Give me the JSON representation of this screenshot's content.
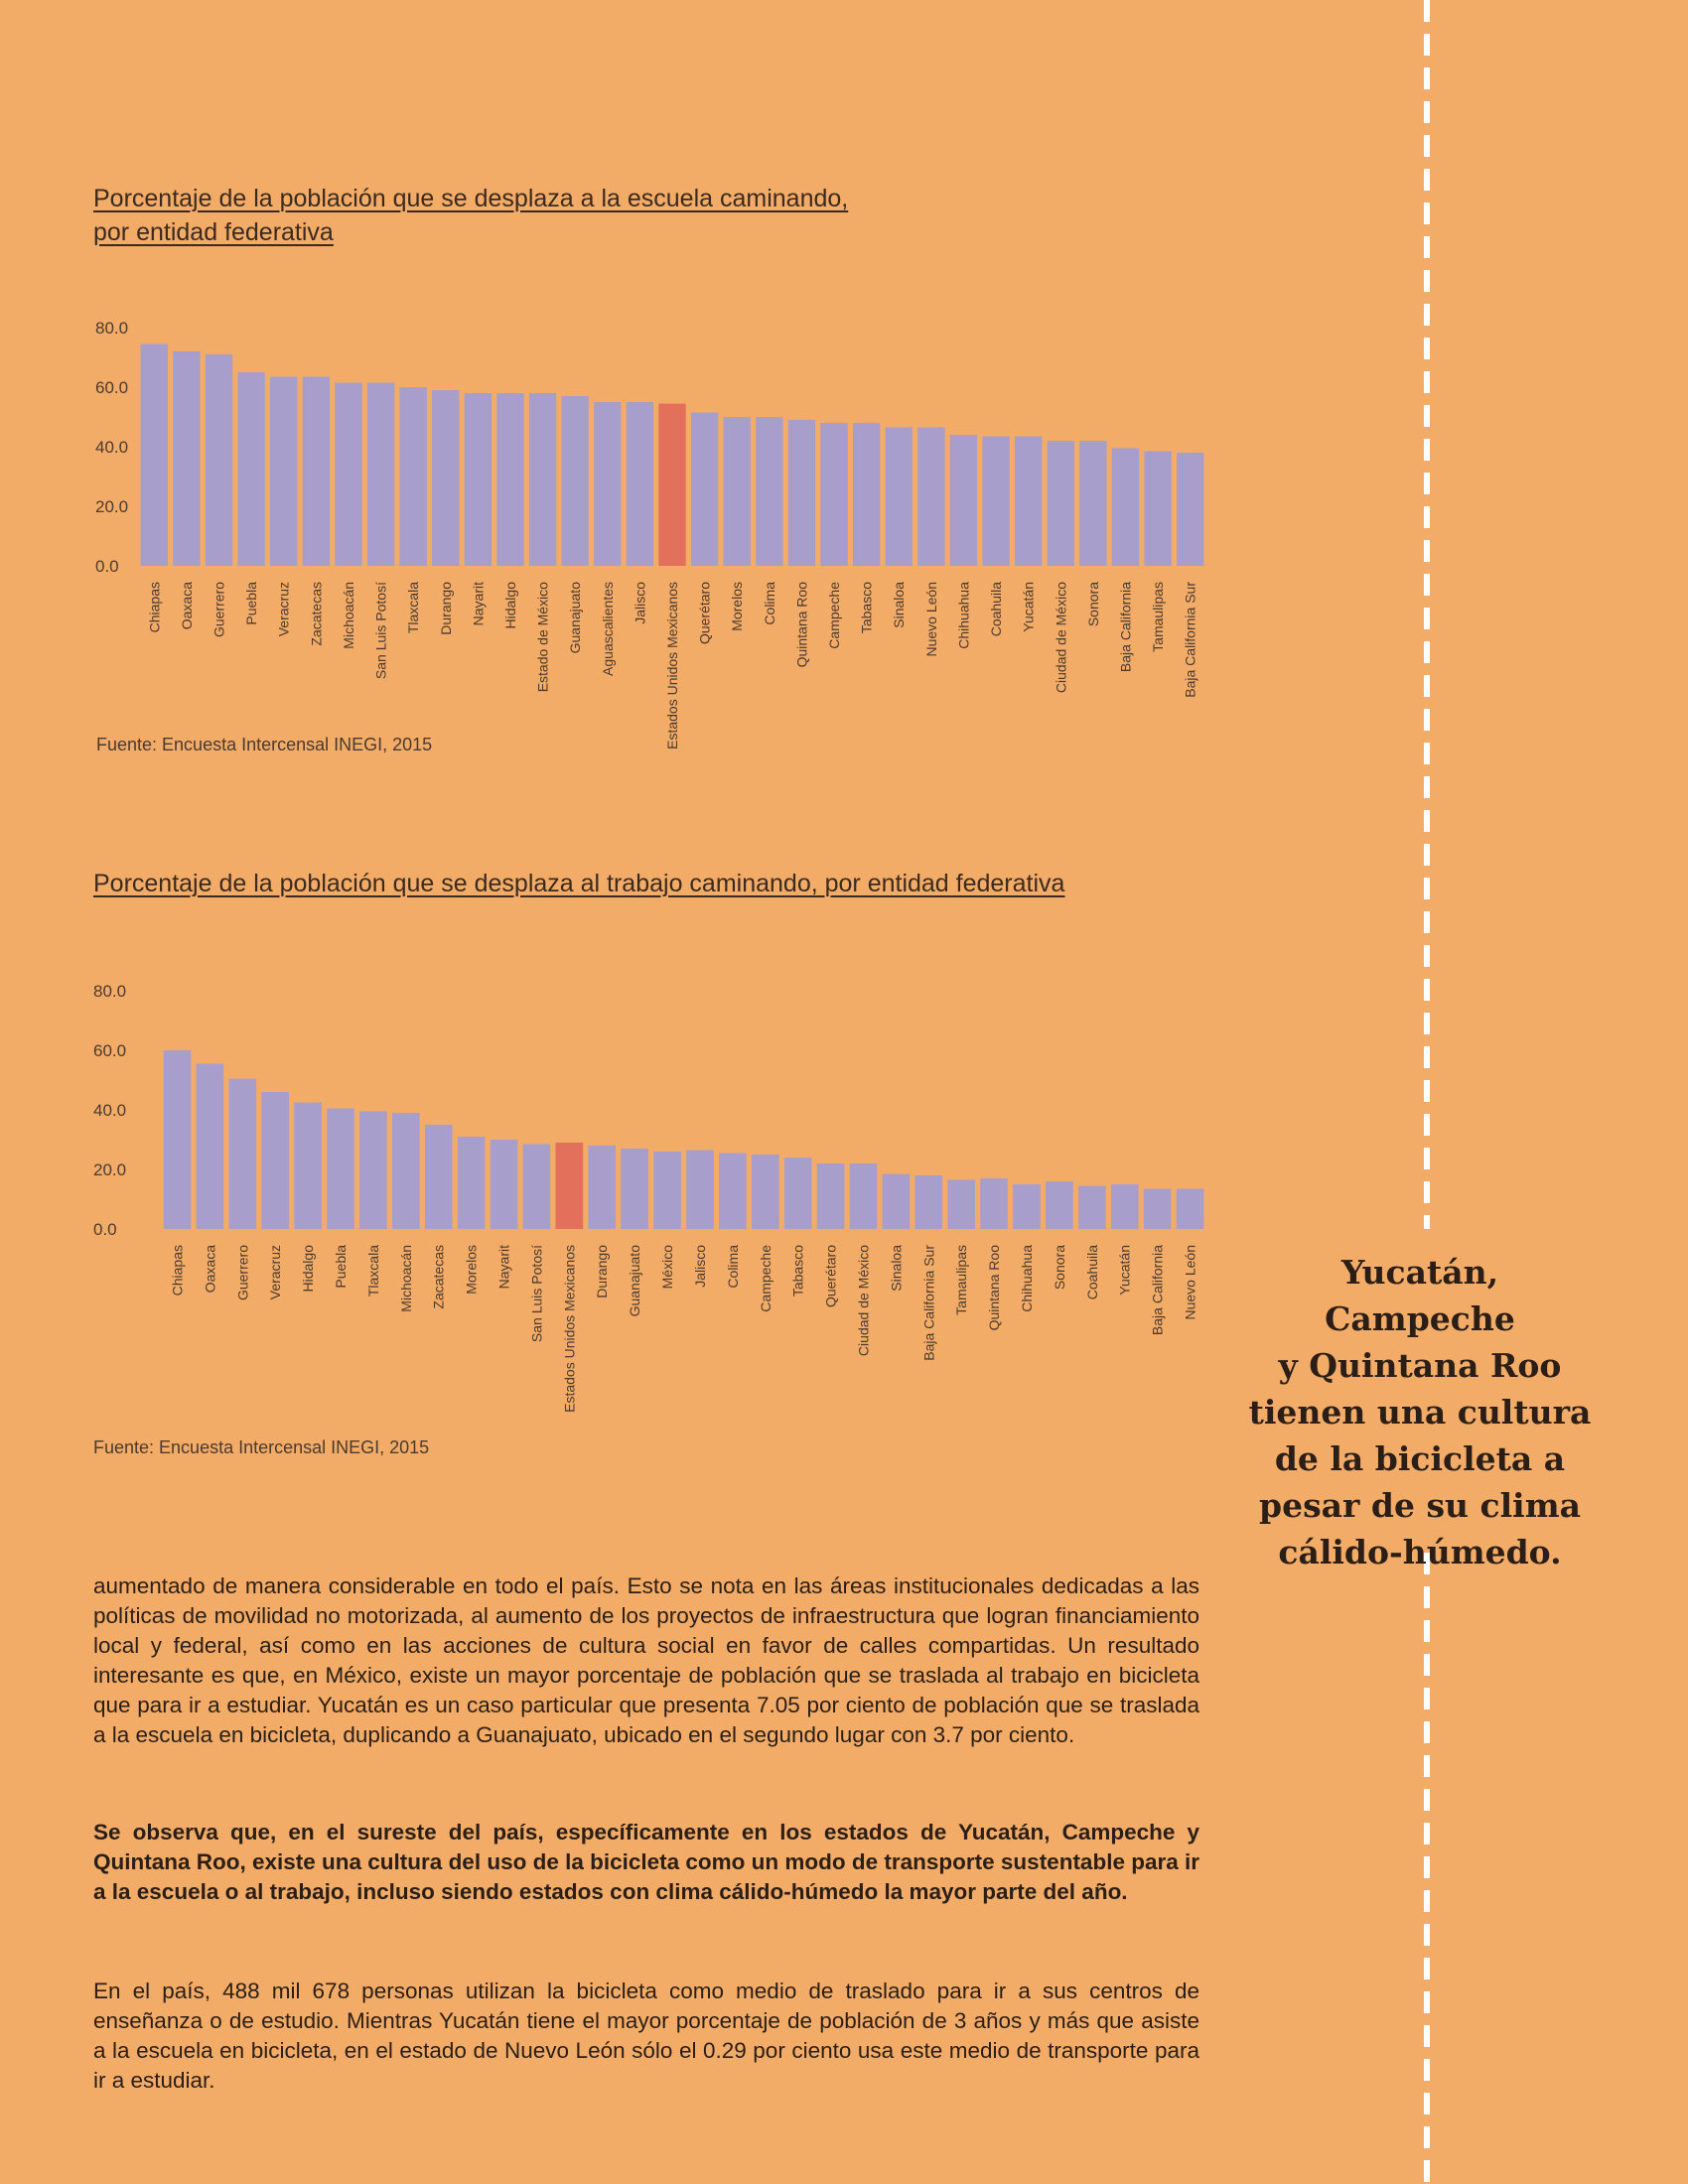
{
  "charts": [
    {
      "title_line1": "Porcentaje de la población que se desplaza a la escuela caminando,",
      "title_line2": "por entidad federativa",
      "source": "Fuente: Encuesta Intercensal INEGI, 2015"
    },
    {
      "title_line1": "Porcentaje de la población que se desplaza al trabajo caminando, por entidad federativa",
      "source": "Fuente: Encuesta Intercensal INEGI, 2015"
    }
  ],
  "colors": {
    "background": "#F3AC67",
    "bar": "#A89ECB",
    "highlight": "#E3705A",
    "axis_text": "#4a3a30"
  },
  "chart_data": [
    {
      "type": "bar",
      "title": "Porcentaje de la población que se desplaza a la escuela caminando, por entidad federativa",
      "ylim": [
        0,
        80
      ],
      "y_ticks": [
        "0.0",
        "20.0",
        "40.0",
        "60.0",
        "80.0"
      ],
      "grid": false,
      "highlight": "Estados Unidos Mexicanos",
      "categories": [
        "Chiapas",
        "Oaxaca",
        "Guerrero",
        "Puebla",
        "Veracruz",
        "Zacatecas",
        "Michoacán",
        "San Luis Potosí",
        "Tlaxcala",
        "Durango",
        "Nayarit",
        "Hidalgo",
        "Estado de México",
        "Guanajuato",
        "Aguascalientes",
        "Jalisco",
        "Estados Unidos Mexicanos",
        "Querétaro",
        "Morelos",
        "Colima",
        "Quintana Roo",
        "Campeche",
        "Tabasco",
        "Sinaloa",
        "Nuevo León",
        "Chihuahua",
        "Coahuila",
        "Yucatán",
        "Ciudad de México",
        "Sonora",
        "Baja California",
        "Tamaulipas",
        "Baja California Sur"
      ],
      "values": [
        74.5,
        72.0,
        71.0,
        65.0,
        63.5,
        63.5,
        61.5,
        61.5,
        60.0,
        59.0,
        58.0,
        58.0,
        58.0,
        57.0,
        55.0,
        55.0,
        54.5,
        51.5,
        50.0,
        50.0,
        49.0,
        48.0,
        48.0,
        46.5,
        46.5,
        44.0,
        43.5,
        43.5,
        42.0,
        42.0,
        39.5,
        38.5,
        38.0
      ]
    },
    {
      "type": "bar",
      "title": "Porcentaje de la población que se desplaza al trabajo caminando, por entidad federativa",
      "ylim": [
        0,
        80
      ],
      "y_ticks": [
        "0.0",
        "20.0",
        "40.0",
        "60.0",
        "80.0"
      ],
      "grid": false,
      "highlight": "Estados Unidos Mexicanos",
      "categories": [
        "Chiapas",
        "Oaxaca",
        "Guerrero",
        "Veracruz",
        "Hidalgo",
        "Puebla",
        "Tlaxcala",
        "Michoacán",
        "Zacatecas",
        "Morelos",
        "Nayarit",
        "San Luis Potosí",
        "Estados Unidos Mexicanos",
        "Durango",
        "Guanajuato",
        "México",
        "Jalisco",
        "Colima",
        "Campeche",
        "Tabasco",
        "Querétaro",
        "Ciudad de México",
        "Sinaloa",
        "Baja California Sur",
        "Tamaulipas",
        "Quintana Roo",
        "Chihuahua",
        "Sonora",
        "Coahuila",
        "Yucatán",
        "Baja California",
        "Nuevo León"
      ],
      "values": [
        60.0,
        55.5,
        50.5,
        46.0,
        42.5,
        40.5,
        39.5,
        39.0,
        35.0,
        31.0,
        30.0,
        28.5,
        29.0,
        28.0,
        27.0,
        26.0,
        26.5,
        25.5,
        25.0,
        24.0,
        22.0,
        22.0,
        18.5,
        18.0,
        16.5,
        17.0,
        15.0,
        16.0,
        14.5,
        15.0,
        13.5,
        13.5
      ]
    }
  ],
  "callout": {
    "lines": [
      "Yucatán, Campeche",
      "y Quintana Roo",
      "tienen una cultura",
      "de la bicicleta a",
      "pesar de su clima",
      "cálido-húmedo."
    ]
  },
  "body": {
    "p1": "aumentado de manera considerable en todo el país. Esto se nota en las áreas institucionales dedicadas a las políticas de movilidad no motorizada, al aumento de los proyectos de infraestructura que logran financiamiento local y federal, así como en las acciones de cultura social en favor de calles compartidas. Un resultado interesante es que, en México, existe un mayor porcentaje de población que se traslada al trabajo en bicicleta que para ir a estudiar. Yucatán es un caso particular que presenta 7.05 por ciento de población que se traslada a la escuela en bicicleta, duplicando a Guanajuato, ubicado en el segundo lugar con 3.7 por ciento.",
    "p2": "Se observa que, en el sureste del país, específicamente en los estados de Yucatán, Campeche y Quintana Roo, existe una cultura del uso de la bicicleta como un modo de transporte sustentable para ir a la escuela o al trabajo, incluso siendo estados con clima cálido-húmedo la mayor parte del año.",
    "p3": "En el país, 488 mil 678 personas utilizan la bicicleta como medio de traslado para ir a sus centros de enseñanza o de estudio. Mientras Yucatán tiene el mayor porcentaje de población de 3 años y más que asiste a la escuela en bicicleta, en el estado de Nuevo León sólo el 0.29 por ciento usa este medio de transporte para ir a estudiar."
  }
}
